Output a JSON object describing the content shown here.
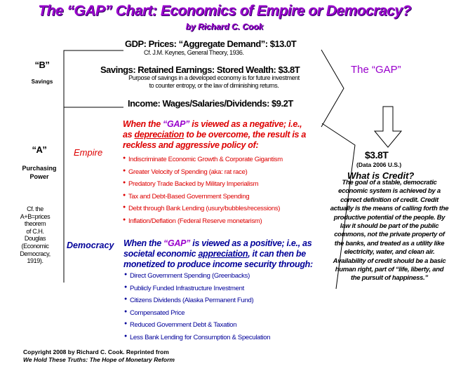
{
  "title": "The “GAP” Chart: Economics of Empire or Democracy?",
  "byline": "by Richard C. Cook",
  "gdp": {
    "heading": "GDP: Prices: “Aggregate Demand”: $13.0T",
    "note": "Cf. J.M. Keynes, General Theory, 1936."
  },
  "savings": {
    "heading": "Savings: Retained Earnings: Stored Wealth: $3.8T",
    "note_line1": "Purpose of savings in a developed economy is for future investment",
    "note_line2": "to counter entropy, or the law of diminishing returns."
  },
  "income": {
    "heading": "Income: Wages/Salaries/Dividends: $9.2T"
  },
  "left": {
    "b_label": "“B”",
    "b_sub": "Savings",
    "a_label": "“A”",
    "a_sub_line1": "Purchasing",
    "a_sub_line2": "Power",
    "cf_lines": [
      "Cf. the",
      "A+B=prices",
      "theorem",
      "of C.H.",
      "Douglas",
      "(Economic",
      "Democracy,",
      "1919)."
    ]
  },
  "gap": {
    "label": "The “GAP”",
    "amount": "$3.8T",
    "data_note": "(Data 2006 U.S.)"
  },
  "empire": {
    "label": "Empire",
    "intro_pre": "When the ",
    "intro_gap": "“GAP”",
    "intro_mid": " is viewed as a negative; i.e., as ",
    "intro_key": "depreciation",
    "intro_post": " to be overcome, the result is a reckless and aggressive policy of:",
    "items": [
      "Indiscriminate Economic Growth & Corporate Gigantism",
      "Greater Velocity of Spending (aka: rat race)",
      "Predatory Trade Backed by Military Imperialism",
      "Tax and Debt-Based Government Spending",
      "Debt through Bank Lending (usury/bubbles/recessions)",
      "Inflation/Deflation (Federal Reserve monetarism)"
    ]
  },
  "democracy": {
    "label": "Democracy",
    "intro_pre": "When the ",
    "intro_gap": "“GAP”",
    "intro_mid": " is viewed as a positive; i.e., as societal economic ",
    "intro_key": "appreciation",
    "intro_post": ", it can then be monetized to produce income security through:",
    "items": [
      "Direct Government Spending (Greenbacks)",
      "Publicly Funded Infrastructure Investment",
      "Citizens Dividends (Alaska Permanent Fund)",
      "Compensated Price",
      "Reduced Government Debt & Taxation",
      "Less Bank Lending for Consumption & Speculation"
    ]
  },
  "credit": {
    "heading": "What is Credit?",
    "body": "The goal of a stable, democratic economic system is achieved by a correct definition of credit. Credit actually is the means of calling forth the productive potential of the people. By law it should be part of the public commons, not the private property of the banks, and treated as a utility like electricity, water, and clean air. Availability of credit should be a basic human right, part of “life, liberty, and the pursuit of happiness.”"
  },
  "footer": {
    "line1": "Copyright 2008 by Richard C. Cook. Reprinted from",
    "line2": "We Hold These Truths: The Hope of Monetary Reform"
  },
  "colors": {
    "title": "#9900cc",
    "empire": "#dd0000",
    "democracy": "#000099",
    "gap_highlight": "#9900cc"
  }
}
